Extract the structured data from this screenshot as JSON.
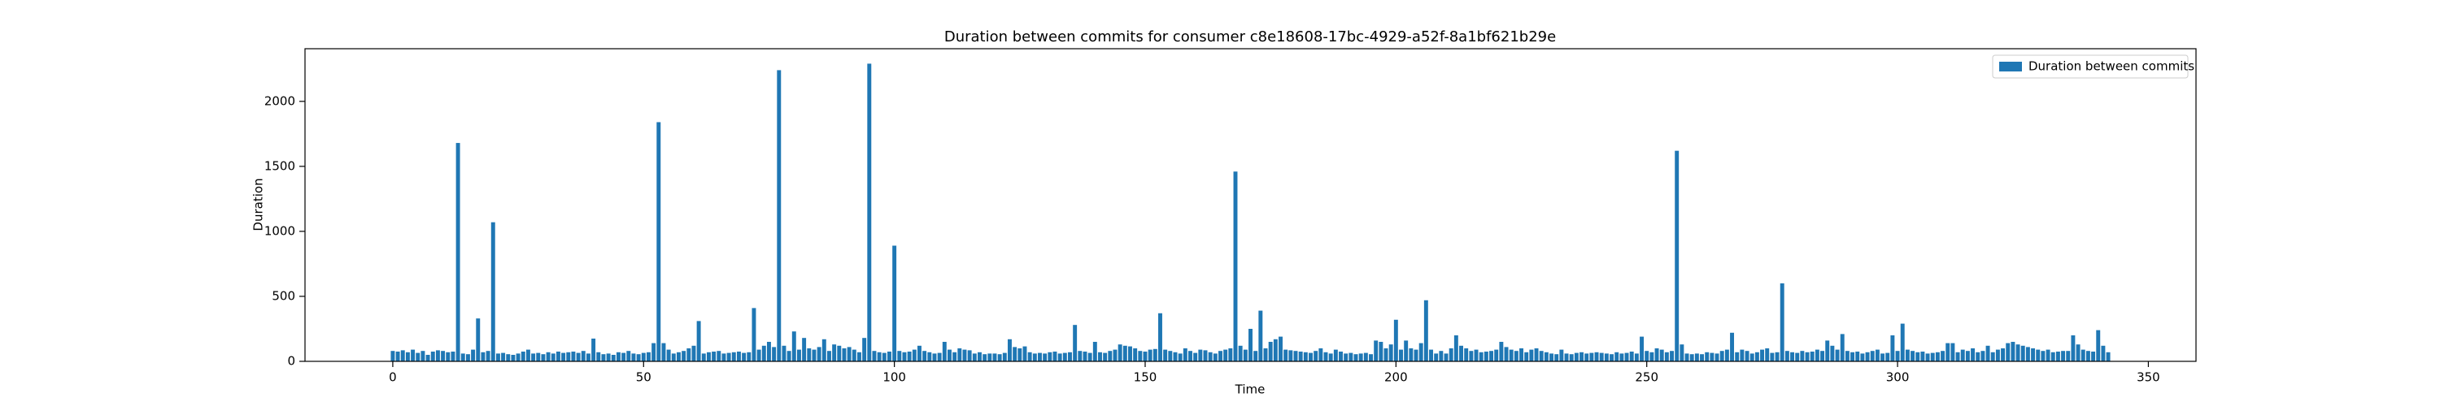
{
  "chart_data": {
    "type": "bar",
    "title": "Duration between commits for consumer c8e18608-17bc-4929-a52f-8a1bf621b29e",
    "xlabel": "Time",
    "ylabel": "Duration",
    "series": [
      {
        "name": "Duration between commits",
        "color": "#1f77b4",
        "values": [
          80,
          75,
          85,
          70,
          90,
          65,
          80,
          50,
          75,
          85,
          80,
          70,
          75,
          1680,
          60,
          55,
          90,
          330,
          70,
          80,
          1070,
          60,
          65,
          55,
          50,
          60,
          75,
          90,
          60,
          65,
          55,
          70,
          60,
          75,
          65,
          70,
          75,
          65,
          80,
          60,
          175,
          70,
          55,
          60,
          50,
          70,
          65,
          80,
          60,
          55,
          65,
          70,
          140,
          1840,
          140,
          90,
          60,
          70,
          80,
          100,
          120,
          310,
          60,
          70,
          75,
          80,
          60,
          65,
          70,
          75,
          65,
          70,
          410,
          90,
          120,
          150,
          110,
          2240,
          120,
          80,
          230,
          90,
          180,
          100,
          90,
          110,
          170,
          80,
          130,
          120,
          100,
          110,
          90,
          70,
          180,
          2290,
          80,
          70,
          65,
          75,
          890,
          80,
          70,
          75,
          90,
          120,
          80,
          70,
          60,
          65,
          150,
          90,
          70,
          100,
          90,
          85,
          60,
          70,
          55,
          60,
          60,
          55,
          65,
          170,
          110,
          100,
          115,
          70,
          60,
          65,
          60,
          70,
          75,
          60,
          65,
          70,
          280,
          80,
          75,
          65,
          150,
          70,
          65,
          80,
          90,
          130,
          120,
          115,
          100,
          80,
          75,
          90,
          95,
          370,
          90,
          80,
          70,
          60,
          100,
          80,
          65,
          90,
          85,
          70,
          60,
          80,
          90,
          100,
          1460,
          120,
          90,
          250,
          80,
          390,
          100,
          150,
          170,
          190,
          90,
          85,
          80,
          75,
          70,
          65,
          80,
          100,
          70,
          60,
          90,
          75,
          60,
          65,
          55,
          60,
          65,
          55,
          160,
          150,
          100,
          130,
          320,
          90,
          160,
          100,
          90,
          140,
          470,
          90,
          60,
          80,
          60,
          100,
          200,
          120,
          100,
          80,
          90,
          70,
          75,
          80,
          90,
          150,
          110,
          90,
          80,
          100,
          70,
          90,
          100,
          80,
          70,
          60,
          55,
          90,
          60,
          55,
          65,
          70,
          60,
          65,
          70,
          65,
          60,
          55,
          70,
          60,
          65,
          75,
          60,
          190,
          80,
          70,
          100,
          90,
          70,
          80,
          1620,
          130,
          60,
          55,
          60,
          55,
          70,
          65,
          60,
          80,
          90,
          220,
          70,
          90,
          80,
          60,
          70,
          90,
          100,
          65,
          70,
          600,
          80,
          70,
          65,
          80,
          70,
          75,
          90,
          80,
          160,
          120,
          90,
          210,
          80,
          70,
          75,
          60,
          70,
          80,
          90,
          60,
          65,
          200,
          80,
          290,
          90,
          80,
          70,
          75,
          60,
          65,
          70,
          80,
          140,
          140,
          70,
          90,
          80,
          100,
          70,
          80,
          120,
          70,
          90,
          100,
          140,
          150,
          130,
          120,
          110,
          100,
          90,
          80,
          90,
          70,
          75,
          80,
          80,
          200,
          130,
          90,
          80,
          75,
          240,
          120,
          70
        ]
      }
    ],
    "bar_width": 0.8,
    "xlim": [
      -17.5,
      359.5
    ],
    "xticks": [
      0,
      50,
      100,
      150,
      200,
      250,
      300,
      350
    ],
    "ylim": [
      0,
      2405
    ],
    "yticks": [
      0,
      500,
      1000,
      1500,
      2000
    ],
    "legend": "upper right"
  }
}
